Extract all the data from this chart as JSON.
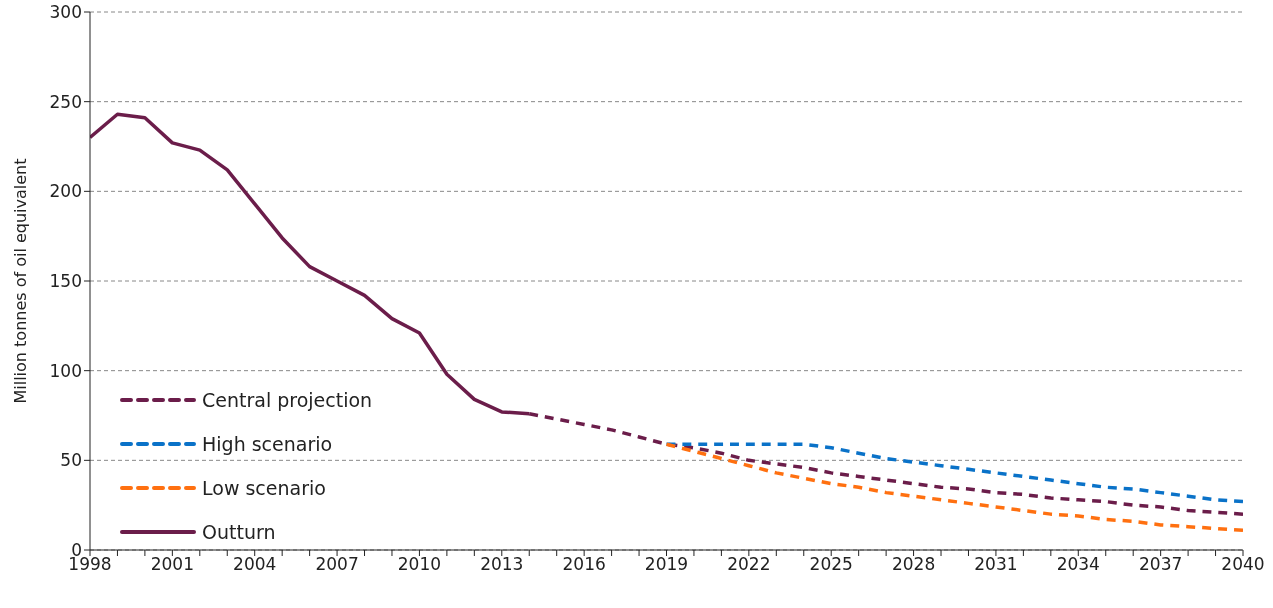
{
  "chart_data": {
    "type": "line",
    "ylabel": "Million tonnes of oil equivalent",
    "categories": [
      "1998",
      null,
      null,
      "2001",
      null,
      null,
      "2004",
      null,
      null,
      "2007",
      null,
      null,
      "2010",
      null,
      null,
      "2013",
      null,
      null,
      "2016",
      null,
      null,
      "2019",
      null,
      null,
      "2022",
      null,
      null,
      "2025",
      null,
      null,
      "2028",
      null,
      null,
      "2031",
      null,
      null,
      "2034",
      null,
      null,
      "2037",
      null,
      null,
      "2040"
    ],
    "series": [
      {
        "name": "Central projection",
        "color": "#6b1d4a",
        "line_style": "dashed",
        "values": [
          null,
          null,
          null,
          null,
          null,
          null,
          null,
          null,
          null,
          null,
          null,
          null,
          null,
          null,
          null,
          null,
          76,
          73,
          70,
          67,
          63,
          59,
          57,
          54,
          50,
          48,
          46,
          43,
          41,
          39,
          37,
          35,
          34,
          32,
          31,
          29,
          28,
          27,
          25,
          24,
          22,
          21,
          20
        ]
      },
      {
        "name": "High scenario",
        "color": "#0a72c8",
        "line_style": "dashed",
        "values": [
          null,
          null,
          null,
          null,
          null,
          null,
          null,
          null,
          null,
          null,
          null,
          null,
          null,
          null,
          null,
          null,
          null,
          null,
          null,
          null,
          null,
          59,
          59,
          59,
          59,
          59,
          59,
          57,
          54,
          51,
          49,
          47,
          45,
          43,
          41,
          39,
          37,
          35,
          34,
          32,
          30,
          28,
          27
        ]
      },
      {
        "name": "Low scenario",
        "color": "#ff7010",
        "line_style": "dashed",
        "values": [
          null,
          null,
          null,
          null,
          null,
          null,
          null,
          null,
          null,
          null,
          null,
          null,
          null,
          null,
          null,
          null,
          null,
          null,
          null,
          null,
          null,
          59,
          55,
          51,
          47,
          43,
          40,
          37,
          35,
          32,
          30,
          28,
          26,
          24,
          22,
          20,
          19,
          17,
          16,
          14,
          13,
          12,
          11
        ]
      },
      {
        "name": "Outturn",
        "color": "#6b1d4a",
        "line_style": "solid",
        "values": [
          230,
          243,
          241,
          227,
          223,
          212,
          193,
          174,
          158,
          150,
          142,
          129,
          121,
          98,
          84,
          77,
          76,
          null,
          null,
          null,
          null,
          null,
          null,
          null,
          null,
          null,
          null,
          null,
          null,
          null,
          null,
          null,
          null,
          null,
          null,
          null,
          null,
          null,
          null,
          null,
          null,
          null,
          null
        ]
      }
    ],
    "ylim": [
      0,
      300
    ],
    "yticks": [
      0,
      50,
      100,
      150,
      200,
      250,
      300
    ],
    "grid": "y",
    "legend": "bottom left",
    "marker": "none"
  }
}
